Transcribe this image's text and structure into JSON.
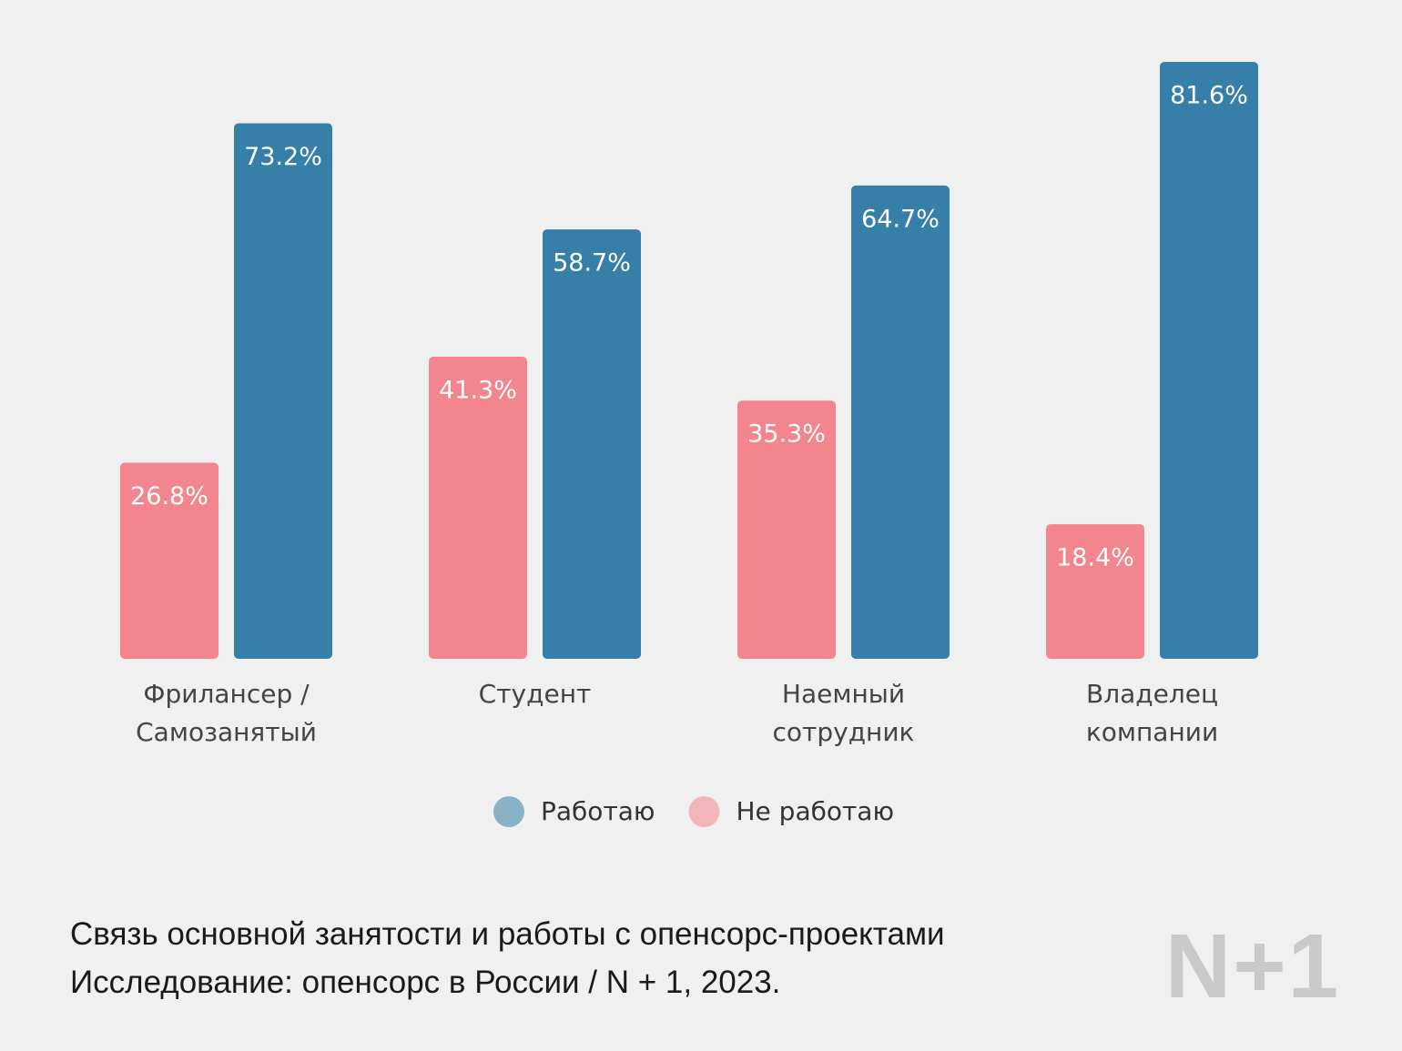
{
  "chart_data": {
    "type": "bar",
    "categories": [
      "Фрилансер /\nСамозанятый",
      "Студент",
      "Наемный\nсотрудник",
      "Владелец\nкомпании"
    ],
    "series": [
      {
        "name": "Не работаю",
        "color": "#f2858d",
        "values": [
          26.8,
          41.3,
          35.3,
          18.4
        ],
        "value_labels": [
          "26.8%",
          "41.3%",
          "35.3%",
          "18.4%"
        ]
      },
      {
        "name": "Работаю",
        "color": "#357fa9",
        "values": [
          73.2,
          58.7,
          64.7,
          81.6
        ],
        "value_labels": [
          "73.2%",
          "58.7%",
          "64.7%",
          "81.6%"
        ]
      }
    ],
    "caption": [
      "Связь основной занятости и работы с опенсорс-проектами",
      "Исследование: опенсорс в России / N + 1, 2023."
    ],
    "logo": "N+1"
  }
}
